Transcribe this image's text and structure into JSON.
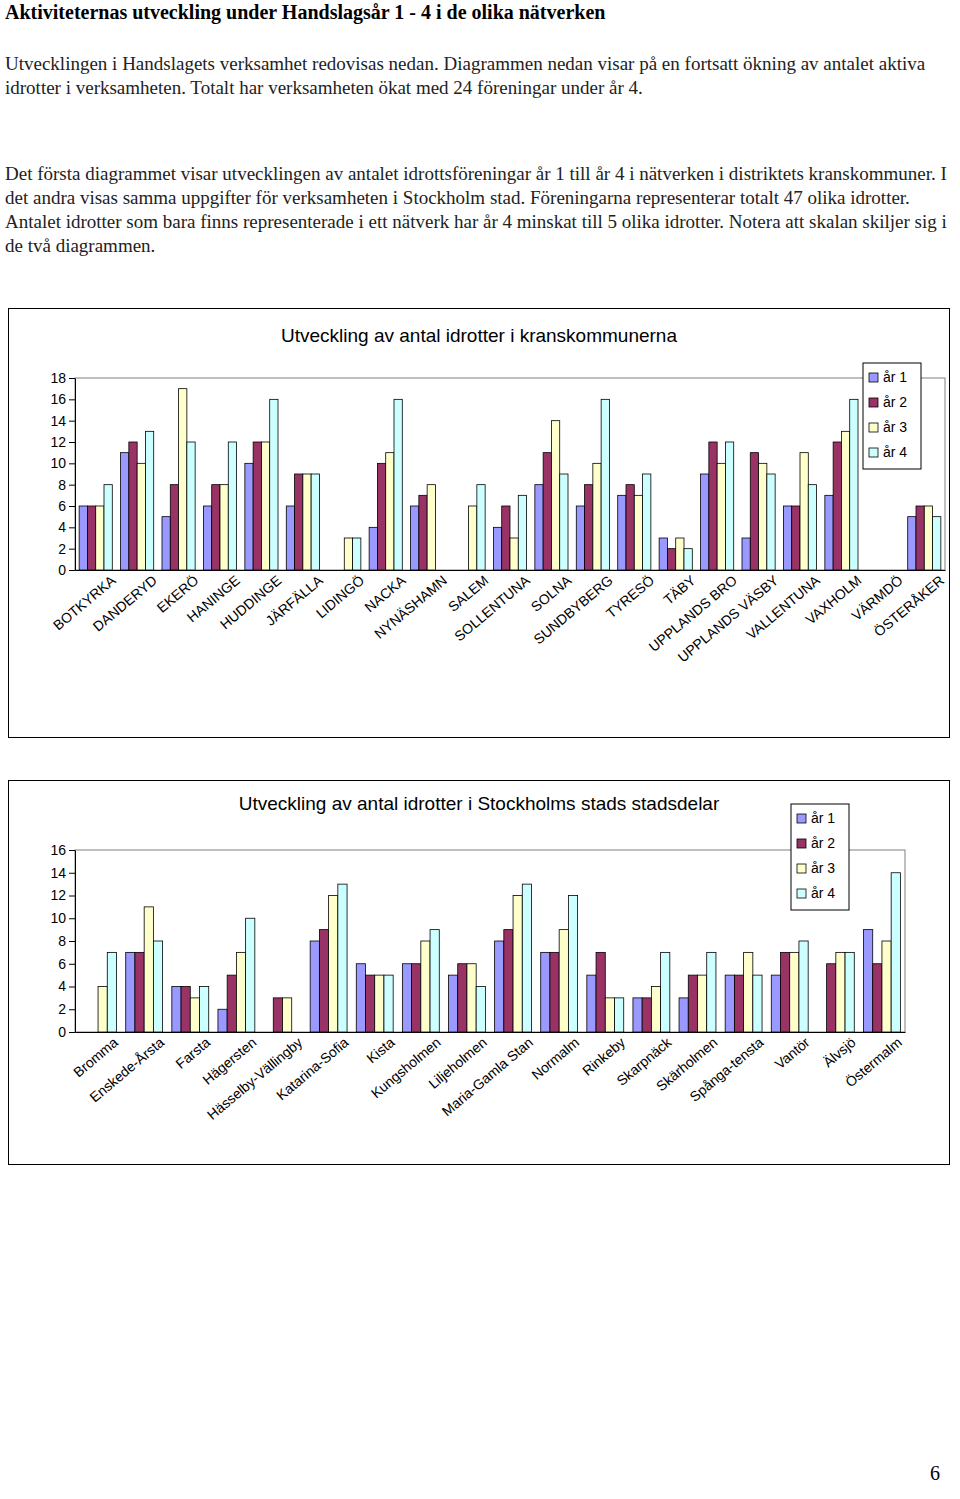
{
  "title": "Aktiviteternas utveckling under Handslagsår 1 - 4 i de olika nätverken",
  "paragraphs": [
    "Utvecklingen i Handslagets verksamhet redovisas nedan. Diagrammen nedan visar på en fortsatt ökning av antalet aktiva idrotter i verksamheten. Totalt har verksamheten ökat med 24 föreningar under år 4.",
    "Det första diagrammet visar utvecklingen av antalet idrottsföreningar år 1 till år 4 i nätverken i distriktets kranskommuner. I det andra visas samma uppgifter för verksamheten i Stockholm stad. Föreningarna representerar totalt 47 olika idrotter. Antalet idrotter som bara finns representerade i ett nätverk har år 4 minskat till 5 olika idrotter. Notera att skalan skiljer sig i de två diagrammen."
  ],
  "chart_data": [
    {
      "type": "bar",
      "title": "Utveckling av antal idrotter i kranskommunerna",
      "categories": [
        "BOTKYRKA",
        "DANDERYD",
        "EKERÖ",
        "HANINGE",
        "HUDDINGE",
        "JÄRFÄLLA",
        "LIDINGÖ",
        "NACKA",
        "NYNÄSHAMN",
        "SALEM",
        "SOLLENTUNA",
        "SOLNA",
        "SUNDBYBERG",
        "TYRESÖ",
        "TÄBY",
        "UPPLANDS BRO",
        "UPPLANDS VÄSBY",
        "VALLENTUNA",
        "VAXHOLM",
        "VÄRMDÖ",
        "ÖSTERÅKER"
      ],
      "series": [
        {
          "name": "år 1",
          "color": "#9999ff",
          "values": [
            6,
            11,
            5,
            6,
            10,
            6,
            null,
            4,
            6,
            null,
            4,
            8,
            6,
            7,
            3,
            9,
            3,
            6,
            7,
            null,
            5
          ]
        },
        {
          "name": "år 2",
          "color": "#993366",
          "values": [
            6,
            12,
            8,
            8,
            12,
            9,
            null,
            10,
            7,
            null,
            6,
            11,
            8,
            8,
            2,
            12,
            11,
            6,
            12,
            null,
            6
          ]
        },
        {
          "name": "år 3",
          "color": "#ffffcc",
          "values": [
            6,
            10,
            17,
            8,
            12,
            9,
            3,
            11,
            8,
            6,
            3,
            14,
            10,
            7,
            3,
            10,
            10,
            11,
            13,
            null,
            6
          ]
        },
        {
          "name": "år 4",
          "color": "#ccffff",
          "values": [
            8,
            13,
            12,
            12,
            16,
            9,
            3,
            16,
            null,
            8,
            7,
            9,
            16,
            9,
            2,
            12,
            9,
            8,
            16,
            null,
            5
          ]
        }
      ],
      "ylim": [
        0,
        18
      ],
      "yticks": [
        0,
        2,
        4,
        6,
        8,
        10,
        12,
        14,
        16,
        18
      ],
      "grid": false,
      "legend": "top-right"
    },
    {
      "type": "bar",
      "title": "Utveckling av antal idrotter i Stockholms stads stadsdelar",
      "categories": [
        "Bromma",
        "Enskede-Årsta",
        "Farsta",
        "Hägersten",
        "Hässelby-Vällingby",
        "Katarina-Sofia",
        "Kista",
        "Kungsholmen",
        "Liljeholmen",
        "Maria-Gamla Stan",
        "Normalm",
        "Rinkeby",
        "Skarpnäck",
        "Skärholmen",
        "Spånga-tensta",
        "Vantör",
        "Älvsjö",
        "Östermalm"
      ],
      "series": [
        {
          "name": "år 1",
          "color": "#9999ff",
          "values": [
            null,
            7,
            4,
            2,
            null,
            8,
            6,
            6,
            5,
            8,
            7,
            5,
            3,
            3,
            5,
            5,
            null,
            9
          ]
        },
        {
          "name": "år 2",
          "color": "#993366",
          "values": [
            null,
            7,
            4,
            5,
            3,
            9,
            5,
            6,
            6,
            9,
            7,
            7,
            3,
            5,
            5,
            7,
            6,
            6
          ]
        },
        {
          "name": "år 3",
          "color": "#ffffcc",
          "values": [
            4,
            11,
            3,
            7,
            3,
            12,
            5,
            8,
            6,
            12,
            9,
            3,
            4,
            5,
            7,
            7,
            7,
            8
          ]
        },
        {
          "name": "år 4",
          "color": "#ccffff",
          "values": [
            7,
            8,
            4,
            10,
            null,
            13,
            5,
            9,
            4,
            13,
            12,
            3,
            7,
            7,
            5,
            8,
            7,
            14
          ]
        }
      ],
      "ylim": [
        0,
        16
      ],
      "yticks": [
        0,
        2,
        4,
        6,
        8,
        10,
        12,
        14,
        16
      ],
      "grid": false,
      "legend": "top-right"
    }
  ],
  "page_number": "6"
}
